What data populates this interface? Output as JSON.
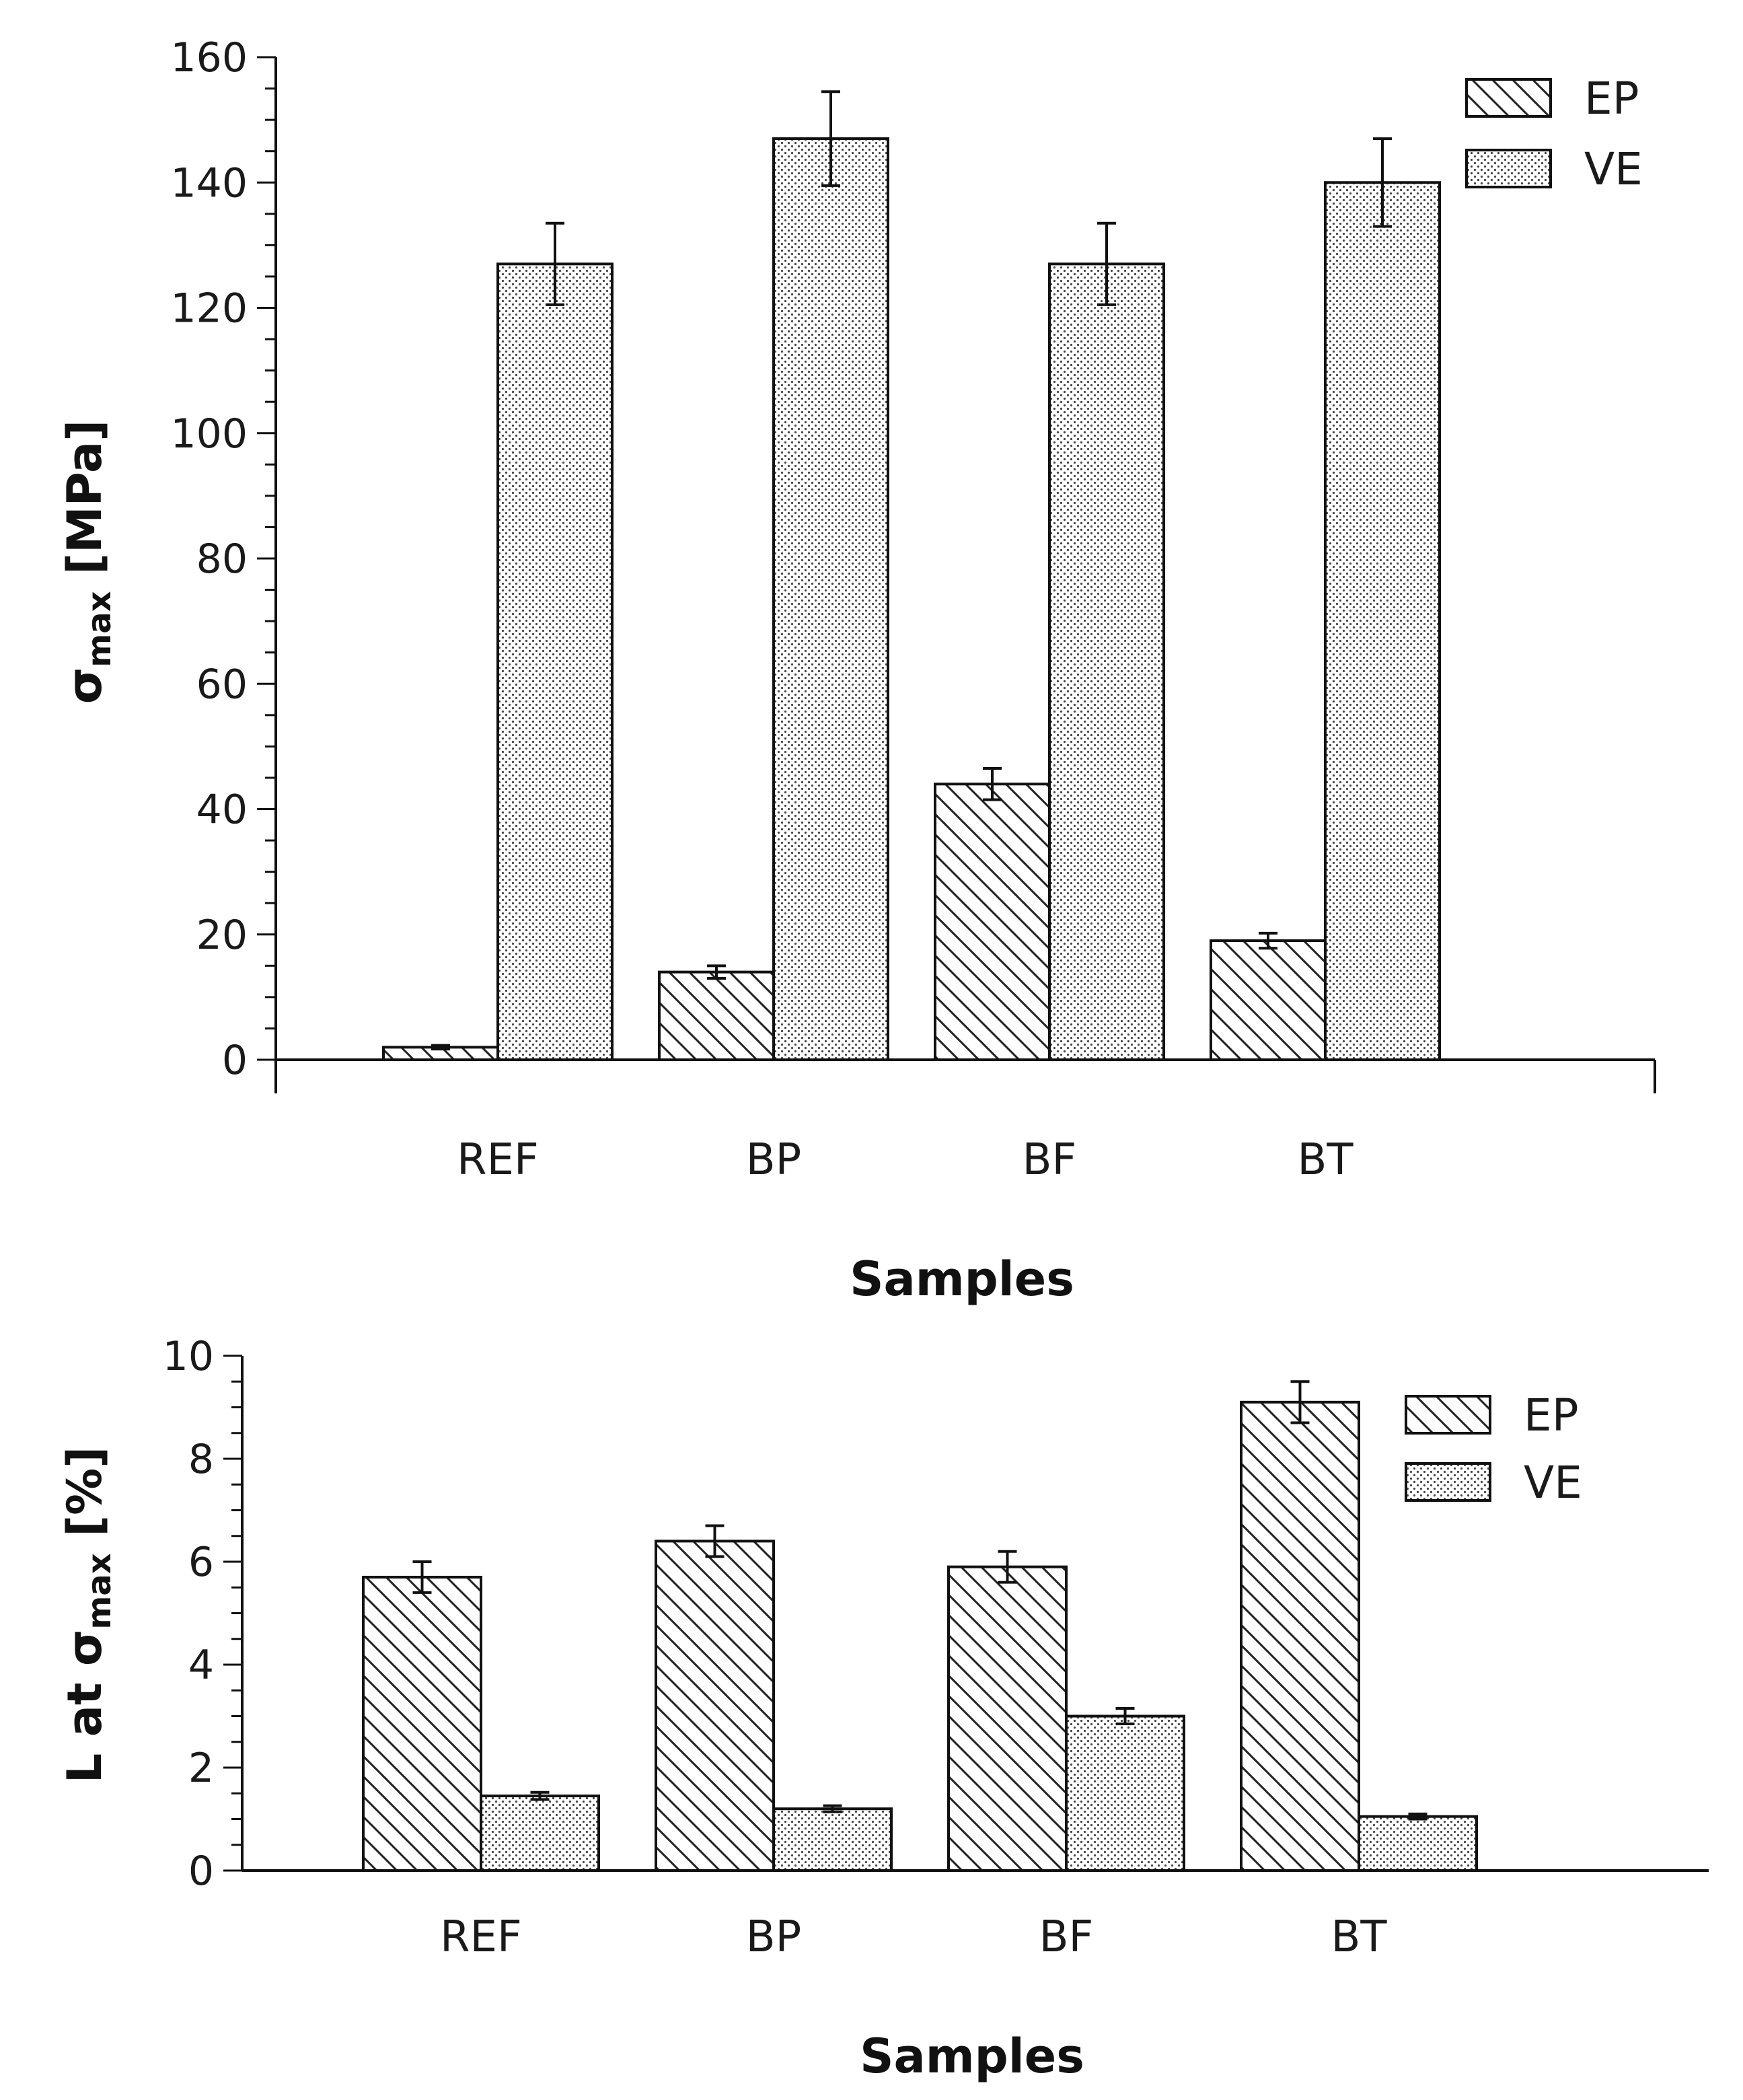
{
  "chart_data": [
    {
      "type": "bar",
      "categories": [
        "REF",
        "BP",
        "BF",
        "BT"
      ],
      "series": [
        {
          "name": "EP",
          "values": [
            2,
            14,
            44,
            19
          ],
          "errors": [
            0.3,
            1,
            2.5,
            1.2
          ]
        },
        {
          "name": "VE",
          "values": [
            127,
            147,
            127,
            140
          ],
          "errors": [
            6.5,
            7.5,
            6.5,
            7
          ]
        }
      ],
      "ylim": [
        0,
        160
      ],
      "yticks": [
        0,
        20,
        40,
        60,
        80,
        100,
        120,
        140,
        160
      ],
      "ylabel_main": "σ",
      "ylabel_sub": "max",
      "ylabel_tail": " [MPa]",
      "xlabel": "Samples",
      "legend": "top-right"
    },
    {
      "type": "bar",
      "categories": [
        "REF",
        "BP",
        "BF",
        "BT"
      ],
      "series": [
        {
          "name": "EP",
          "values": [
            5.7,
            6.4,
            5.9,
            9.1
          ],
          "errors": [
            0.3,
            0.3,
            0.3,
            0.4
          ]
        },
        {
          "name": "VE",
          "values": [
            1.45,
            1.2,
            3.0,
            1.05
          ],
          "errors": [
            0.07,
            0.06,
            0.15,
            0.05
          ]
        }
      ],
      "ylim": [
        0,
        10
      ],
      "yticks": [
        0,
        2,
        4,
        6,
        8,
        10
      ],
      "ylabel_main": "L at σ",
      "ylabel_sub": "max",
      "ylabel_tail": " [%]",
      "xlabel": "Samples",
      "legend": "top-right"
    }
  ]
}
